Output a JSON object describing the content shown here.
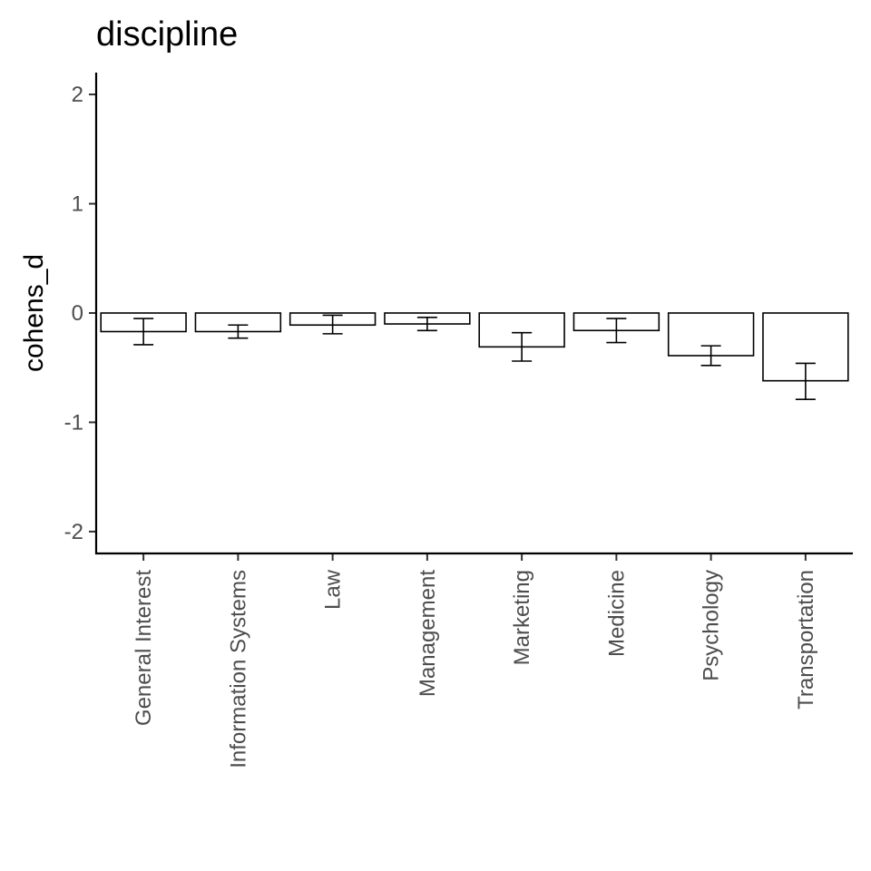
{
  "chart_data": {
    "type": "bar",
    "title": "discipline",
    "xlabel": "",
    "ylabel": "cohens_d",
    "ylim": [
      -2.2,
      2.2
    ],
    "yticks": [
      2,
      1,
      0,
      -1,
      -2
    ],
    "ytick_labels": [
      "2",
      "1",
      "0",
      "-1",
      "-2"
    ],
    "categories": [
      "General Interest",
      "Information Systems",
      "Law",
      "Management",
      "Marketing",
      "Medicine",
      "Psychology",
      "Transportation"
    ],
    "values": [
      -0.17,
      -0.17,
      -0.11,
      -0.1,
      -0.31,
      -0.16,
      -0.39,
      -0.62
    ],
    "error_low": [
      -0.29,
      -0.23,
      -0.19,
      -0.16,
      -0.44,
      -0.27,
      -0.48,
      -0.79
    ],
    "error_high": [
      -0.05,
      -0.11,
      -0.02,
      -0.04,
      -0.18,
      -0.05,
      -0.3,
      -0.46
    ],
    "grid": false,
    "legend": "none"
  }
}
